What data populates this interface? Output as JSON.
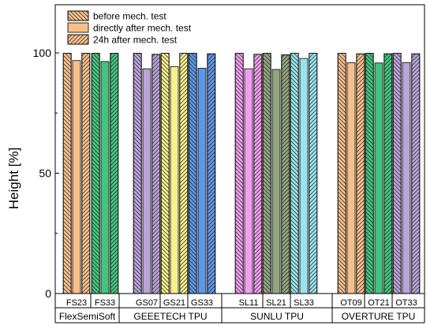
{
  "chart_data": {
    "type": "bar",
    "ylabel": "Height [%]",
    "xlabel": "",
    "ylim": [
      0,
      120
    ],
    "yticks": [
      0,
      50,
      100
    ],
    "grid": false,
    "legend_position": "top-left",
    "series": [
      {
        "name": "before mech. test",
        "pattern": "hatch-backslash"
      },
      {
        "name": "directly after mech. test",
        "pattern": "solid"
      },
      {
        "name": "24h after mech. test",
        "pattern": "hatch-slash"
      }
    ],
    "categories": [
      {
        "label": "FS23",
        "color": "#f7bf8a",
        "values": [
          99.8,
          96.8,
          99.8
        ]
      },
      {
        "label": "FS33",
        "color": "#43c47e",
        "values": [
          99.8,
          96.4,
          99.8
        ]
      },
      {
        "label": "GS07",
        "color": "#b9a4d8",
        "values": [
          99.8,
          93.4,
          99.4
        ]
      },
      {
        "label": "GS21",
        "color": "#f7f08a",
        "values": [
          99.8,
          94.3,
          99.8
        ]
      },
      {
        "label": "GS33",
        "color": "#5d97e8",
        "values": [
          99.8,
          93.6,
          99.6
        ]
      },
      {
        "label": "SL11",
        "color": "#f29ef0",
        "values": [
          99.8,
          93.4,
          99.4
        ]
      },
      {
        "label": "SL21",
        "color": "#93a57e",
        "values": [
          99.8,
          93.1,
          99.2
        ]
      },
      {
        "label": "SL33",
        "color": "#97e4ec",
        "values": [
          99.8,
          97.7,
          99.8
        ]
      },
      {
        "label": "OT09",
        "color": "#f7bf8a",
        "values": [
          99.8,
          95.9,
          99.6
        ]
      },
      {
        "label": "OT21",
        "color": "#43c47e",
        "values": [
          99.8,
          95.8,
          99.6
        ]
      },
      {
        "label": "OT33",
        "color": "#b9a4d8",
        "values": [
          99.8,
          96.0,
          99.6
        ]
      }
    ],
    "groups": [
      {
        "name": "FlexSemiSoft",
        "members": [
          "FS23",
          "FS33"
        ]
      },
      {
        "name": "GEEETECH TPU",
        "members": [
          "GS07",
          "GS21",
          "GS33"
        ]
      },
      {
        "name": "SUNLU TPU",
        "members": [
          "SL11",
          "SL21",
          "SL33"
        ]
      },
      {
        "name": "OVERTURE TPU",
        "members": [
          "OT09",
          "OT21",
          "OT33"
        ]
      }
    ],
    "legend_swatch_color": "#f7bf8a"
  }
}
